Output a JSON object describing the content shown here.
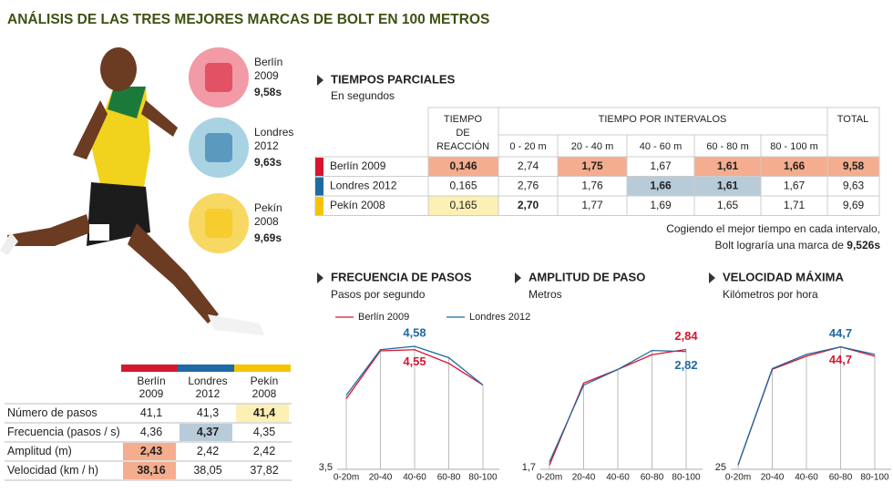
{
  "title": "ANÁLISIS DE LAS TRES MEJORES MARCAS DE BOLT EN 100 METROS",
  "edition_colors": [
    "#d7172f",
    "#1e6aa3",
    "#f5c400"
  ],
  "athlete_cards": [
    {
      "city": "Berlín",
      "year": "2009",
      "time": "9,58s"
    },
    {
      "city": "Londres",
      "year": "2012",
      "time": "9,63s"
    },
    {
      "city": "Pekín",
      "year": "2008",
      "time": "9,69s"
    }
  ],
  "split_table": {
    "heading": "TIEMPOS PARCIALES",
    "subheading": "En segundos",
    "reaction_header": [
      "TIEMPO",
      "DE",
      "REACCIÓN"
    ],
    "intervals_header": "TIEMPO POR INTERVALOS",
    "total_header": "TOTAL",
    "interval_labels": [
      "0 - 20 m",
      "20 - 40 m",
      "40 - 60 m",
      "60 - 80 m",
      "80 - 100 m"
    ],
    "rows": [
      [
        "Berlín 2009",
        "0,146",
        "2,74",
        "1,75",
        "1,67",
        "1,61",
        "1,66",
        "9,58"
      ],
      [
        "Londres 2012",
        "0,165",
        "2,76",
        "1,76",
        "1,66",
        "1,61",
        "1,67",
        "9,63"
      ],
      [
        "Pekín 2008",
        "0,165",
        "2,70",
        "1,77",
        "1,69",
        "1,65",
        "1,71",
        "9,69"
      ]
    ],
    "note": [
      "Cogiendo el mejor tiempo en cada intervalo,",
      "Bolt lograría una marca de"
    ],
    "note_value": "9,526s"
  },
  "summary_table": {
    "columns": [
      [
        "Berlín",
        "2009"
      ],
      [
        "Londres",
        "2012"
      ],
      [
        "Pekín",
        "2008"
      ]
    ],
    "rows": [
      [
        "Número de pasos",
        "41,1",
        "41,3",
        "41,4"
      ],
      [
        "Frecuencia (pasos / s)",
        "4,36",
        "4,37",
        "4,35"
      ],
      [
        "Amplitud (m)",
        "2,43",
        "2,42",
        "2,42"
      ],
      [
        "Velocidad (km / h)",
        "38,16",
        "38,05",
        "37,82"
      ]
    ]
  },
  "chart_data": [
    {
      "type": "line",
      "title": "FRECUENCIA DE PASOS",
      "subtitle": "Pasos por segundo",
      "categories": [
        "0-20m",
        "20-40",
        "40-60",
        "60-80",
        "80-100"
      ],
      "legend": true,
      "series": [
        {
          "name": "Berlín 2009",
          "color": "#d7172f",
          "values": [
            4.12,
            4.54,
            4.55,
            4.43,
            4.24
          ],
          "value_labels": [
            null,
            null,
            "4,55",
            null,
            null
          ]
        },
        {
          "name": "Londres 2012",
          "color": "#1e6aa3",
          "values": [
            4.15,
            4.55,
            4.58,
            4.48,
            4.24
          ],
          "value_labels": [
            null,
            null,
            "4,58",
            null,
            null
          ]
        }
      ],
      "ylim": [
        3.5,
        4.7
      ],
      "yticks": [
        {
          "value": 3.5,
          "label": "3,5"
        }
      ]
    },
    {
      "type": "line",
      "title": "AMPLITUD DE PASO",
      "subtitle": "Metros",
      "categories": [
        "0-20m",
        "20-40",
        "40-60",
        "60-80",
        "80-100"
      ],
      "series": [
        {
          "color": "#d7172f",
          "values": [
            1.74,
            2.52,
            2.65,
            2.79,
            2.84
          ],
          "value_labels": [
            null,
            null,
            null,
            null,
            "2,84"
          ]
        },
        {
          "color": "#1e6aa3",
          "values": [
            1.77,
            2.5,
            2.65,
            2.83,
            2.82
          ],
          "value_labels": [
            null,
            null,
            null,
            null,
            "2,82"
          ]
        }
      ],
      "ylim": [
        1.7,
        3.0
      ],
      "yticks": [
        {
          "value": 1.7,
          "label": "1,7"
        }
      ]
    },
    {
      "type": "line",
      "title": "VELOCIDAD MÁXIMA",
      "subtitle": "Kilómetros por hora",
      "categories": [
        "0-20m",
        "20-40",
        "40-60",
        "60-80",
        "80-100"
      ],
      "series": [
        {
          "color": "#d7172f",
          "values": [
            25.7,
            41.1,
            43.2,
            44.7,
            43.2
          ],
          "value_labels": [
            null,
            null,
            null,
            "44,7",
            null
          ]
        },
        {
          "color": "#1e6aa3",
          "values": [
            25.7,
            41.2,
            43.5,
            44.7,
            43.5
          ],
          "value_labels": [
            null,
            null,
            null,
            "44,7",
            null
          ]
        }
      ],
      "ylim": [
        25,
        47
      ],
      "yticks": [
        25
      ]
    }
  ]
}
